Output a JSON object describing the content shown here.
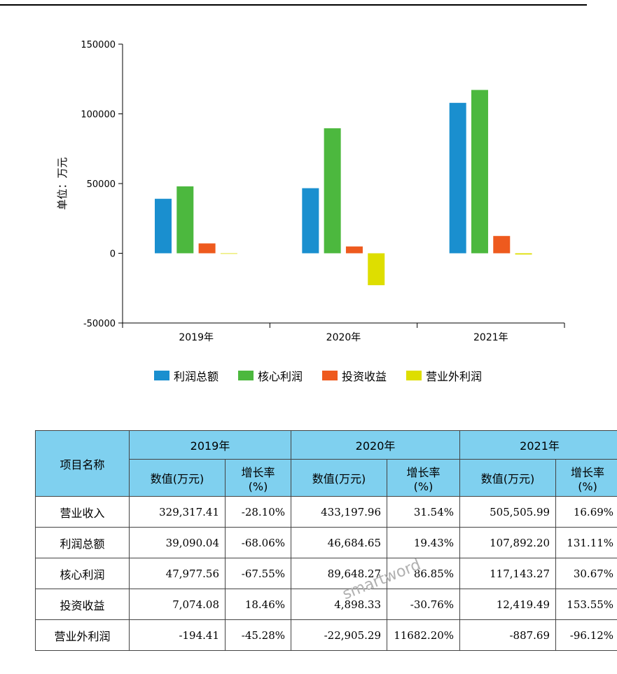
{
  "chart_data": {
    "type": "bar",
    "categories": [
      "2019年",
      "2020年",
      "2021年"
    ],
    "series": [
      {
        "name": "利润总额",
        "color": "#1a8fcf",
        "values": [
          39090.04,
          46684.65,
          107892.2
        ]
      },
      {
        "name": "核心利润",
        "color": "#4cb83e",
        "values": [
          47977.56,
          89648.27,
          117143.27
        ]
      },
      {
        "name": "投资收益",
        "color": "#ee5a1e",
        "values": [
          7074.08,
          4898.33,
          12419.49
        ]
      },
      {
        "name": "营业外利润",
        "color": "#dede00",
        "values": [
          -194.41,
          -22905.29,
          -887.69
        ]
      }
    ],
    "ylabel": "单位：万元",
    "ylim": [
      -50000,
      150000
    ],
    "yticks": [
      -50000,
      0,
      50000,
      100000,
      150000
    ],
    "ytick_labels": [
      "-50000",
      "0",
      "50000",
      "100000",
      "150000"
    ],
    "legend_position": "bottom"
  },
  "table": {
    "corner_header": "项目名称",
    "years": [
      "2019年",
      "2020年",
      "2021年"
    ],
    "value_header": "数值(万元)",
    "growth_header_line1": "增长率",
    "growth_header_line2": "(%)",
    "rows": [
      {
        "name": "营业收入",
        "cells": [
          "329,317.41",
          "-28.10%",
          "433,197.96",
          "31.54%",
          "505,505.99",
          "16.69%"
        ]
      },
      {
        "name": "利润总额",
        "cells": [
          "39,090.04",
          "-68.06%",
          "46,684.65",
          "19.43%",
          "107,892.20",
          "131.11%"
        ]
      },
      {
        "name": "核心利润",
        "cells": [
          "47,977.56",
          "-67.55%",
          "89,648.27",
          "86.85%",
          "117,143.27",
          "30.67%"
        ]
      },
      {
        "name": "投资收益",
        "cells": [
          "7,074.08",
          "18.46%",
          "4,898.33",
          "-30.76%",
          "12,419.49",
          "153.55%"
        ]
      },
      {
        "name": "营业外利润",
        "cells": [
          "-194.41",
          "-45.28%",
          "-22,905.29",
          "11682.20%",
          "-887.69",
          "-96.12%"
        ]
      }
    ]
  },
  "watermark": "smartword"
}
